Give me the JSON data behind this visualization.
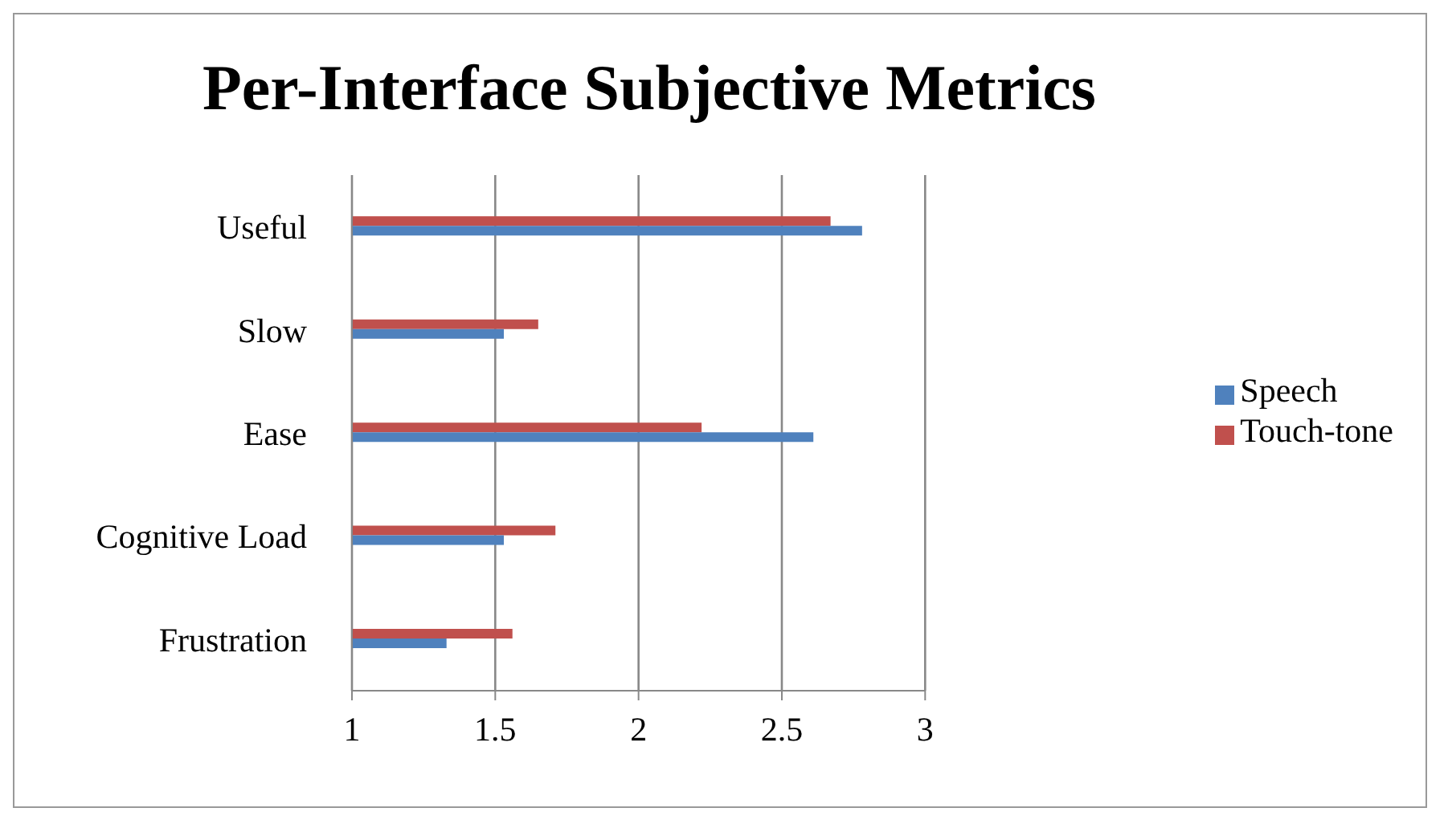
{
  "chart_data": {
    "type": "bar",
    "orientation": "horizontal",
    "title": "Per-Interface Subjective Metrics",
    "categories": [
      "Useful",
      "Slow",
      "Ease",
      "Cognitive Load",
      "Frustration"
    ],
    "series": [
      {
        "name": "Touch-tone",
        "color": "#c0504d",
        "values": [
          2.67,
          1.65,
          2.22,
          1.71,
          1.56
        ]
      },
      {
        "name": "Speech",
        "color": "#4f81bd",
        "values": [
          2.78,
          1.53,
          2.61,
          1.53,
          1.33
        ]
      }
    ],
    "xlim": [
      1,
      3
    ],
    "xticks": [
      1,
      1.5,
      2,
      2.5,
      3
    ],
    "grid": "x",
    "legend": "right"
  }
}
